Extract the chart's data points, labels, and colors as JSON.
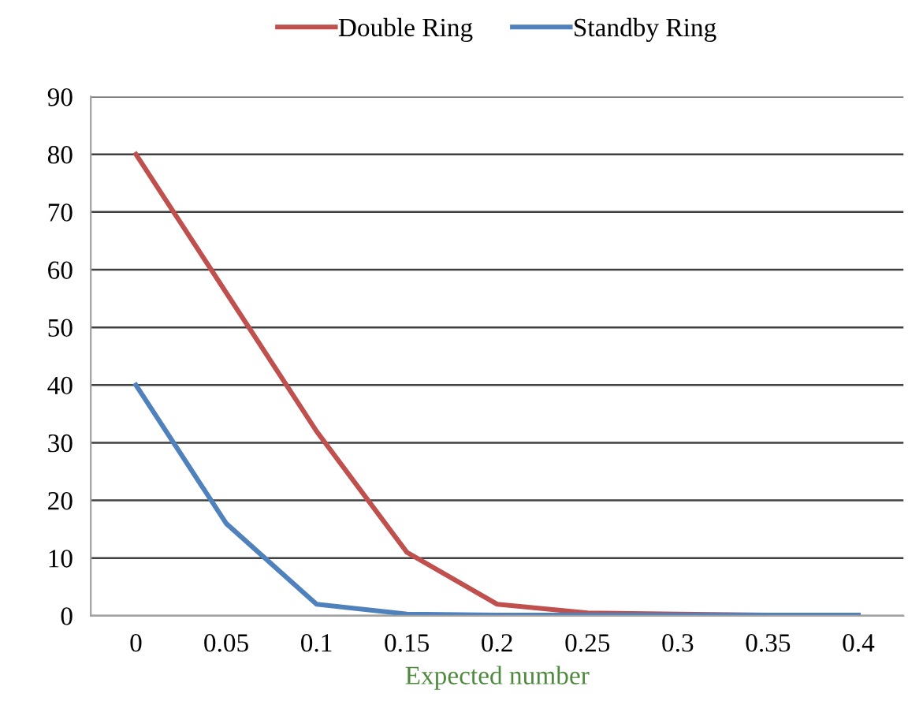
{
  "chart_data": {
    "type": "line",
    "xlabel": "Expected number",
    "categories": [
      "0",
      "0.05",
      "0.1",
      "0.15",
      "0.2",
      "0.25",
      "0.3",
      "0.35",
      "0.4"
    ],
    "series": [
      {
        "name": "Double Ring",
        "color": "#c0504d",
        "values": [
          80,
          56,
          32,
          11,
          2,
          0.5,
          0.3,
          0.1,
          0.1
        ]
      },
      {
        "name": "Standby Ring",
        "color": "#4f81bd",
        "values": [
          40,
          16,
          2,
          0.3,
          0.1,
          0.1,
          0.1,
          0.1,
          0.1
        ]
      }
    ],
    "ylim": [
      0,
      90
    ],
    "yticks": [
      0,
      10,
      20,
      30,
      40,
      50,
      60,
      70,
      80,
      90
    ],
    "grid": "y",
    "legend": "top",
    "marker": "none",
    "line_style": "solid"
  }
}
